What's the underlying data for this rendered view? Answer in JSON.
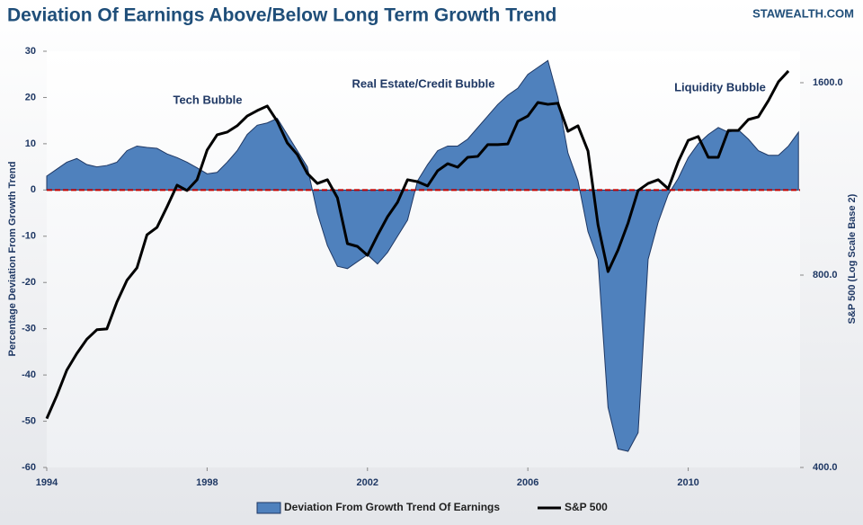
{
  "chart_data": {
    "type": "area_line",
    "title": "Deviation Of Earnings Above/Below Long Term Growth Trend",
    "source": "STAWEALTH.COM",
    "y_label": "Percentage Deviation From Growth Trend",
    "y2_label": "S&P 500 (Log Scale Base 2)",
    "annotations": [
      "Tech Bubble",
      "Real Estate/Credit Bubble",
      "Liquidity Bubble"
    ],
    "x": [
      1994,
      1994.25,
      1994.5,
      1994.75,
      1995,
      1995.25,
      1995.5,
      1995.75,
      1996,
      1996.25,
      1996.5,
      1996.75,
      1997,
      1997.25,
      1997.5,
      1997.75,
      1998,
      1998.25,
      1998.5,
      1998.75,
      1999,
      1999.25,
      1999.5,
      1999.75,
      2000,
      2000.25,
      2000.5,
      2000.75,
      2001,
      2001.25,
      2001.5,
      2001.75,
      2002,
      2002.25,
      2002.5,
      2002.75,
      2003,
      2003.25,
      2003.5,
      2003.75,
      2004,
      2004.25,
      2004.5,
      2004.75,
      2005,
      2005.25,
      2005.5,
      2005.75,
      2006,
      2006.25,
      2006.5,
      2006.75,
      2007,
      2007.25,
      2007.5,
      2007.75,
      2008,
      2008.25,
      2008.5,
      2008.75,
      2009,
      2009.25,
      2009.5,
      2009.75,
      2010,
      2010.25,
      2010.5,
      2010.75,
      2011,
      2011.25,
      2011.5,
      2011.75,
      2012,
      2012.25,
      2012.5,
      2012.75
    ],
    "series": [
      {
        "name": "Deviation From Growth Trend Of Earnings",
        "kind": "area",
        "color": "#4f81bd",
        "edge_color": "#1f3864",
        "values": [
          3,
          4.5,
          6,
          6.8,
          5.5,
          5,
          5.3,
          6,
          8.5,
          9.5,
          9.2,
          9,
          7.8,
          7,
          6,
          4.8,
          3.5,
          3.8,
          6,
          8.5,
          12,
          14,
          14.5,
          15.5,
          12,
          8.5,
          5,
          -5,
          -12,
          -16.5,
          -17,
          -15.5,
          -14,
          -16,
          -13.5,
          -10,
          -6.5,
          2,
          5.5,
          8.5,
          9.5,
          9.5,
          11,
          13.5,
          16,
          18.5,
          20.5,
          22,
          25,
          26.5,
          28,
          20,
          8,
          2,
          -9,
          -15,
          -47,
          -56,
          -56.5,
          -52.5,
          -15,
          -7,
          -1,
          2.5,
          7,
          10,
          12,
          13.5,
          12.5,
          13,
          11,
          8.5,
          7.5,
          7.5,
          9.5,
          12.5
        ]
      },
      {
        "name": "S&P 500",
        "kind": "line",
        "axis": "y2",
        "color": "#000000",
        "values": [
          477,
          518,
          568,
          603,
          635,
          657,
          659,
          726,
          785,
          821,
          925,
          950,
          1023,
          1106,
          1085,
          1128,
          1255,
          1326,
          1339,
          1370,
          1419,
          1447,
          1471,
          1392,
          1288,
          1235,
          1154,
          1113,
          1128,
          1057,
          896,
          887,
          859,
          923,
          987,
          1040,
          1128,
          1120,
          1103,
          1165,
          1195,
          1180,
          1223,
          1227,
          1280,
          1280,
          1283,
          1392,
          1419,
          1490,
          1480,
          1486,
          1343,
          1370,
          1251,
          959,
          810,
          876,
          965,
          1085,
          1113,
          1128,
          1092,
          1203,
          1300,
          1318,
          1223,
          1223,
          1347,
          1347,
          1401,
          1415,
          1500,
          1605,
          1669,
          null
        ]
      }
    ],
    "xlim": [
      1994,
      2012.79
    ],
    "xticks": [
      1994,
      1998,
      2002,
      2006,
      2010
    ],
    "ylim": [
      -60,
      30
    ],
    "yticks": [
      -60,
      -50,
      -40,
      -30,
      -20,
      -10,
      0,
      10,
      20,
      30
    ],
    "y2lim": [
      400,
      1792
    ],
    "y2_log_base": 2,
    "y2ticks": [
      {
        "value": 400,
        "label": "400.0"
      },
      {
        "value": 800,
        "label": "800.0"
      },
      {
        "value": 1600,
        "label": "1600.0"
      }
    ],
    "reference_line": {
      "value": 0,
      "color": "#c00000"
    },
    "legend": "bottom"
  }
}
